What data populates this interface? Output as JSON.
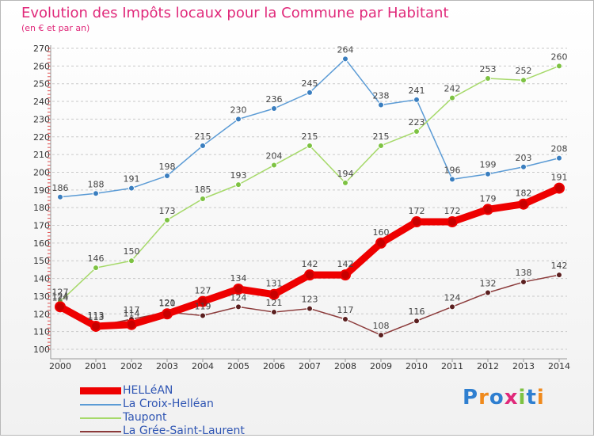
{
  "title": "Evolution des Impôts locaux pour la Commune par Habitant",
  "subtitle": "(en € et par an)",
  "logo": "Proxiti",
  "chart_data": {
    "type": "line",
    "title": "Evolution des Impôts locaux pour la Commune par Habitant",
    "subtitle": "(en € et par an)",
    "xlabel": "",
    "ylabel": "",
    "ylim": [
      100,
      270
    ],
    "yticks": [
      100,
      110,
      120,
      130,
      140,
      150,
      160,
      170,
      180,
      190,
      200,
      210,
      220,
      230,
      240,
      250,
      260,
      270
    ],
    "grid": "horizontal dashed",
    "legend_position": "bottom-left",
    "x": [
      "2000",
      "2001",
      "2002",
      "2003",
      "2004",
      "2005",
      "2006",
      "2007",
      "2008",
      "2009",
      "2010",
      "2011",
      "2012",
      "2013",
      "2014"
    ],
    "series": [
      {
        "name": "La Croix-Helléan",
        "color": "#5b9bd5",
        "marker": "#3a7ebf",
        "weight": "thin",
        "values": [
          186,
          188,
          191,
          198,
          215,
          230,
          236,
          245,
          264,
          238,
          241,
          196,
          199,
          203,
          208
        ]
      },
      {
        "name": "Taupont",
        "color": "#a6d96a",
        "marker": "#7dc242",
        "weight": "thin",
        "values": [
          127,
          146,
          150,
          173,
          185,
          193,
          204,
          215,
          194,
          215,
          223,
          242,
          253,
          252,
          260
        ]
      },
      {
        "name": "La Grée-Saint-Laurent",
        "color": "#8b3a3a",
        "marker": "#5a1f1f",
        "weight": "thin",
        "values": [
          124,
          113,
          117,
          121,
          119,
          124,
          121,
          123,
          117,
          108,
          116,
          124,
          132,
          138,
          142
        ]
      },
      {
        "name": "HELLéAN",
        "color": "#ee0000",
        "marker": "#c80000",
        "weight": "thick",
        "values": [
          124,
          113,
          114,
          120,
          127,
          134,
          131,
          142,
          142,
          160,
          172,
          172,
          179,
          182,
          191
        ]
      }
    ],
    "legend_order": [
      "HELLéAN",
      "La Croix-Helléan",
      "Taupont",
      "La Grée-Saint-Laurent"
    ]
  }
}
